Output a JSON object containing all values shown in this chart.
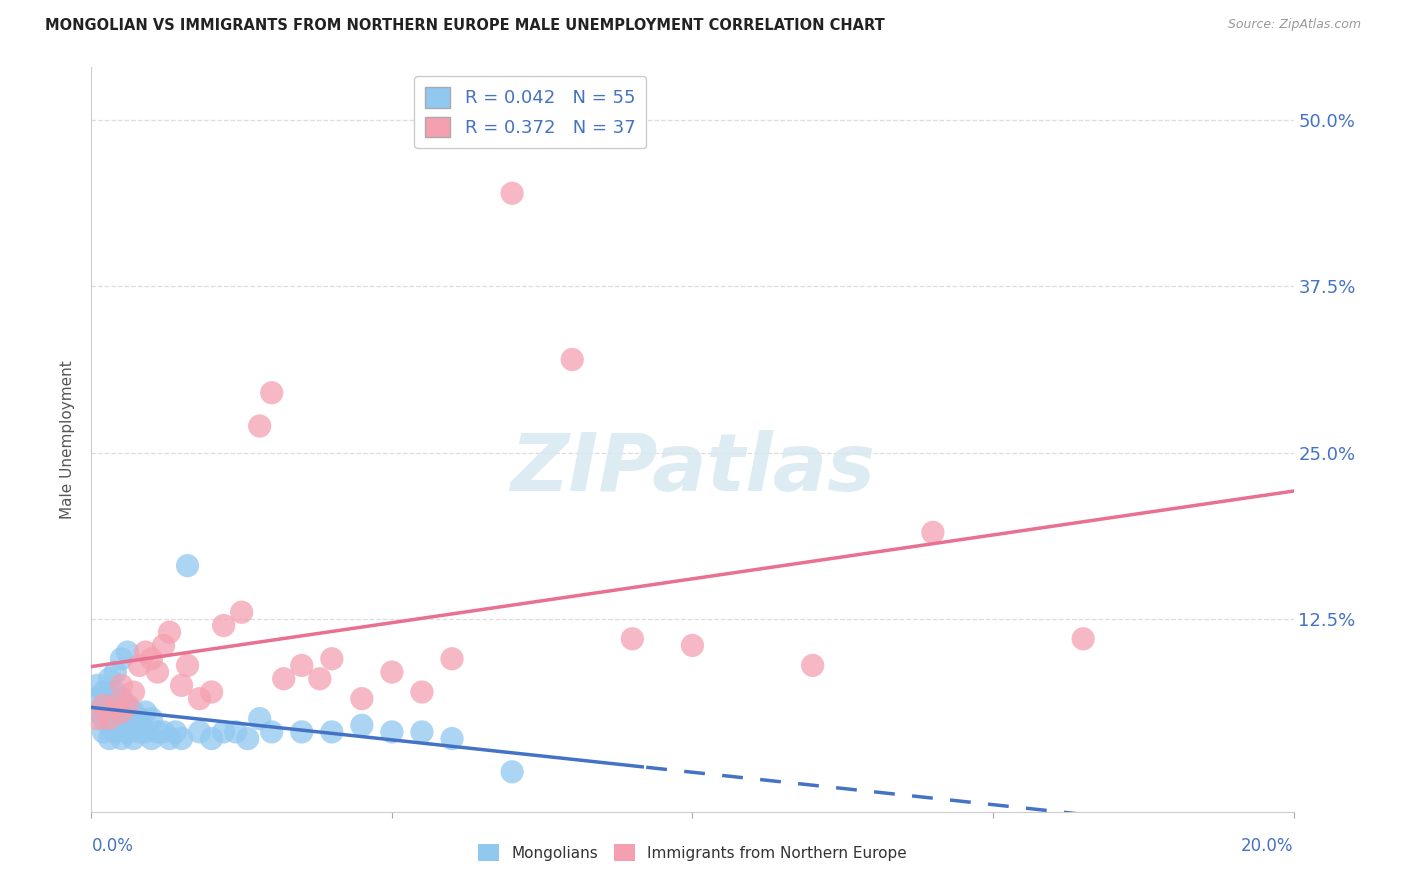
{
  "title": "MONGOLIAN VS IMMIGRANTS FROM NORTHERN EUROPE MALE UNEMPLOYMENT CORRELATION CHART",
  "source": "Source: ZipAtlas.com",
  "ylabel": "Male Unemployment",
  "yticks": [
    "50.0%",
    "37.5%",
    "25.0%",
    "12.5%"
  ],
  "ytick_vals": [
    0.5,
    0.375,
    0.25,
    0.125
  ],
  "xlim": [
    0.0,
    0.2
  ],
  "ylim": [
    -0.02,
    0.54
  ],
  "legend1_R": "0.042",
  "legend1_N": "55",
  "legend2_R": "0.372",
  "legend2_N": "37",
  "color_blue": "#90C8F0",
  "color_pink": "#F4A0B0",
  "color_blue_line": "#4472C4",
  "color_pink_line": "#E87090",
  "mongolian_x": [
    0.001,
    0.001,
    0.001,
    0.002,
    0.002,
    0.002,
    0.002,
    0.003,
    0.003,
    0.003,
    0.003,
    0.003,
    0.004,
    0.004,
    0.004,
    0.004,
    0.004,
    0.005,
    0.005,
    0.005,
    0.005,
    0.005,
    0.006,
    0.006,
    0.006,
    0.006,
    0.007,
    0.007,
    0.007,
    0.008,
    0.008,
    0.009,
    0.009,
    0.01,
    0.01,
    0.011,
    0.012,
    0.013,
    0.014,
    0.015,
    0.016,
    0.018,
    0.02,
    0.022,
    0.024,
    0.026,
    0.028,
    0.03,
    0.035,
    0.04,
    0.045,
    0.05,
    0.055,
    0.06,
    0.07
  ],
  "mongolian_y": [
    0.055,
    0.065,
    0.075,
    0.04,
    0.05,
    0.06,
    0.07,
    0.035,
    0.045,
    0.055,
    0.065,
    0.08,
    0.04,
    0.05,
    0.06,
    0.07,
    0.085,
    0.035,
    0.045,
    0.055,
    0.065,
    0.095,
    0.04,
    0.05,
    0.06,
    0.1,
    0.035,
    0.045,
    0.055,
    0.04,
    0.05,
    0.04,
    0.055,
    0.035,
    0.05,
    0.04,
    0.04,
    0.035,
    0.04,
    0.035,
    0.165,
    0.04,
    0.035,
    0.04,
    0.04,
    0.035,
    0.05,
    0.04,
    0.04,
    0.04,
    0.045,
    0.04,
    0.04,
    0.035,
    0.01
  ],
  "northern_europe_x": [
    0.001,
    0.002,
    0.003,
    0.004,
    0.005,
    0.005,
    0.006,
    0.007,
    0.008,
    0.009,
    0.01,
    0.011,
    0.012,
    0.013,
    0.015,
    0.016,
    0.018,
    0.02,
    0.022,
    0.025,
    0.028,
    0.03,
    0.032,
    0.035,
    0.038,
    0.04,
    0.045,
    0.05,
    0.055,
    0.06,
    0.07,
    0.08,
    0.09,
    0.1,
    0.12,
    0.14,
    0.165
  ],
  "northern_europe_y": [
    0.05,
    0.06,
    0.05,
    0.06,
    0.055,
    0.075,
    0.06,
    0.07,
    0.09,
    0.1,
    0.095,
    0.085,
    0.105,
    0.115,
    0.075,
    0.09,
    0.065,
    0.07,
    0.12,
    0.13,
    0.27,
    0.295,
    0.08,
    0.09,
    0.08,
    0.095,
    0.065,
    0.085,
    0.07,
    0.095,
    0.445,
    0.32,
    0.11,
    0.105,
    0.09,
    0.19,
    0.11
  ],
  "watermark_text": "ZIPatlas",
  "background_color": "#FFFFFF",
  "grid_color": "#DDDDDD",
  "blue_line_solid_end": 0.092,
  "pink_line_start": 0.0,
  "pink_line_end": 0.2
}
